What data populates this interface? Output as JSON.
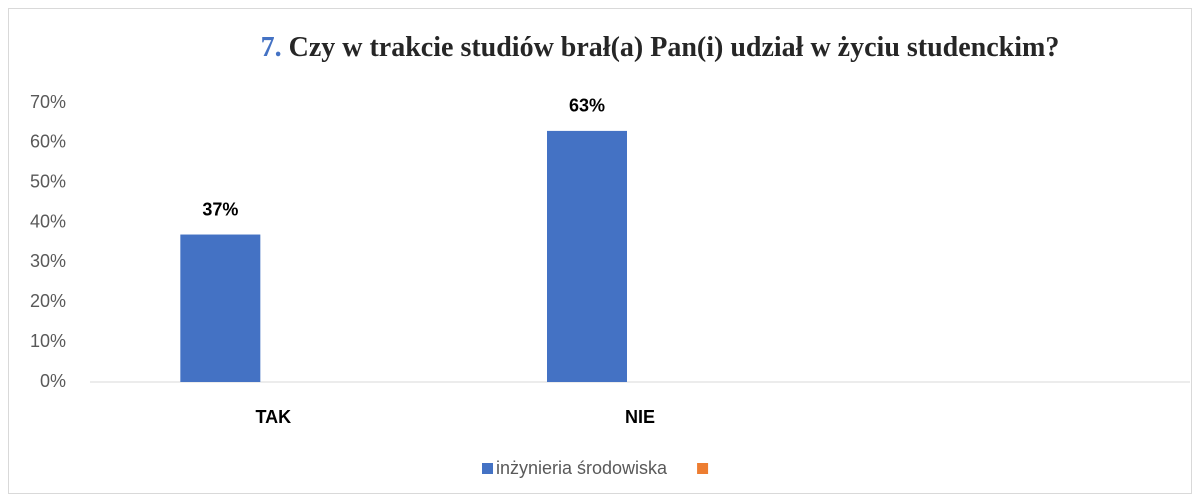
{
  "chart_data": {
    "type": "bar",
    "title_number": "7.",
    "title": "Czy w trakcie studiów brał(a) Pan(i) udział w życiu studenckim?",
    "categories": [
      "TAK",
      "NIE",
      null
    ],
    "series": [
      {
        "name": "inżynieria środowiska",
        "color": "#4472c4",
        "values": [
          37,
          63,
          null
        ],
        "value_labels": [
          "37%",
          "63%",
          null
        ]
      },
      {
        "name": null,
        "color": "#ed7d31",
        "values": [
          null,
          null,
          null
        ]
      }
    ],
    "ylim": [
      0,
      70
    ],
    "yticks": [
      {
        "value": 0,
        "label": "0%"
      },
      {
        "value": 10,
        "label": "10%"
      },
      {
        "value": 20,
        "label": "20%"
      },
      {
        "value": 30,
        "label": "30%"
      },
      {
        "value": 40,
        "label": "40%"
      },
      {
        "value": 50,
        "label": "50%"
      },
      {
        "value": 60,
        "label": "60%"
      },
      {
        "value": 70,
        "label": "70%"
      }
    ],
    "grid": false,
    "legend": "bottom"
  }
}
